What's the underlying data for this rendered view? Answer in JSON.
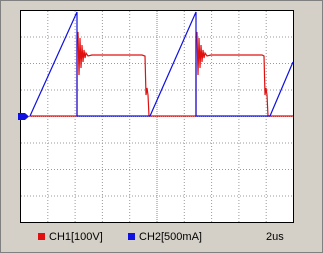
{
  "legend": [
    {
      "label": "CH1[100V]",
      "color": "#e01010"
    },
    {
      "label": "CH2[500mA]",
      "color": "#1010e0"
    }
  ],
  "timebase": "2us"
}
